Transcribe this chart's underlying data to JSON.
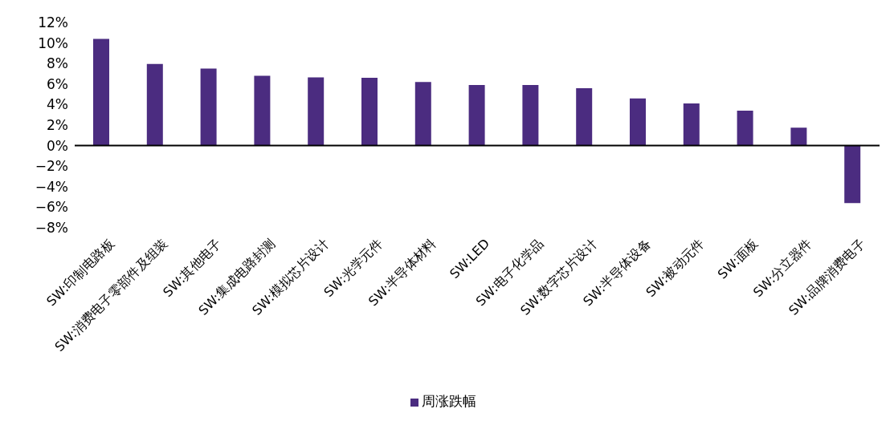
{
  "chart_data": {
    "type": "bar",
    "categories": [
      "SW:印制电路板",
      "SW:消费电子零部件及组装",
      "SW:其他电子",
      "SW:集成电路封测",
      "SW:模拟芯片设计",
      "SW:光学元件",
      "SW:半导体材料",
      "SW:LED",
      "SW:电子化学品",
      "SW:数字芯片设计",
      "SW:半导体设备",
      "SW:被动元件",
      "SW:面板",
      "SW:分立器件",
      "SW:品牌消费电子"
    ],
    "series": [
      {
        "name": "周涨跌幅",
        "color": "#4b2c80",
        "values": [
          10.4,
          7.95,
          7.5,
          6.8,
          6.65,
          6.6,
          6.2,
          5.9,
          5.9,
          5.6,
          4.6,
          4.1,
          3.4,
          1.75,
          -5.6
        ]
      }
    ],
    "ylim": [
      -8,
      12
    ],
    "yticks": [
      {
        "value": -8,
        "label": "−8%"
      },
      {
        "value": -6,
        "label": "−6%"
      },
      {
        "value": -4,
        "label": "−4%"
      },
      {
        "value": -2,
        "label": "−2%"
      },
      {
        "value": 0,
        "label": "0%"
      },
      {
        "value": 2,
        "label": "2%"
      },
      {
        "value": 4,
        "label": "4%"
      },
      {
        "value": 6,
        "label": "6%"
      },
      {
        "value": 8,
        "label": "8%"
      },
      {
        "value": 10,
        "label": "10%"
      },
      {
        "value": 12,
        "label": "12%"
      }
    ],
    "legend": "bottom"
  }
}
